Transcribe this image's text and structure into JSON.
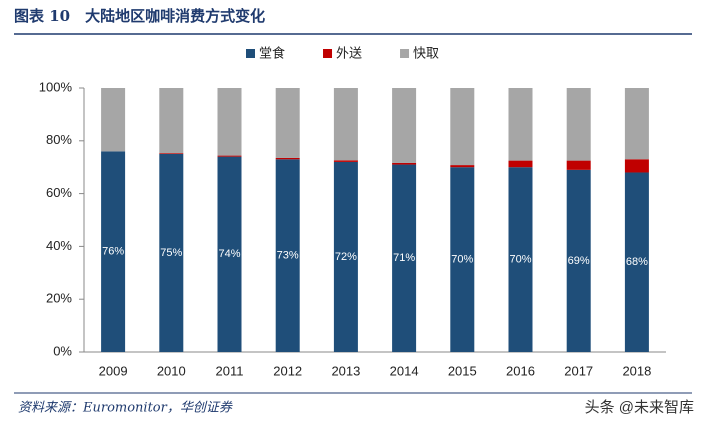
{
  "chart_data": {
    "type": "stacked_bar",
    "title": "图表 10　大陆地区咖啡消费方式变化",
    "source": "资料来源：Euromonitor，华创证券",
    "watermark": "头条 @未来智库",
    "categories": [
      "2009",
      "2010",
      "2011",
      "2012",
      "2013",
      "2014",
      "2015",
      "2016",
      "2017",
      "2018"
    ],
    "series": [
      {
        "name": "堂食",
        "color": "#1f4e79",
        "values": [
          76,
          75,
          74,
          73,
          72,
          71,
          70,
          70,
          69,
          68
        ],
        "value_labels": [
          "76%",
          "75%",
          "74%",
          "73%",
          "72%",
          "71%",
          "70%",
          "70%",
          "69%",
          "68%"
        ]
      },
      {
        "name": "外送",
        "color": "#c00000",
        "values": [
          0,
          0.3,
          0.4,
          0.5,
          0.6,
          0.6,
          0.8,
          2.5,
          3.5,
          5
        ]
      },
      {
        "name": "快取",
        "color": "#a6a6a6",
        "values": [
          24,
          24.7,
          25.6,
          26.5,
          27.4,
          28.4,
          29.2,
          27.5,
          27.5,
          27
        ]
      }
    ],
    "ylim": [
      0,
      100
    ],
    "yticks": [
      {
        "value": 0,
        "label": "0%"
      },
      {
        "value": 20,
        "label": "20%"
      },
      {
        "value": 40,
        "label": "40%"
      },
      {
        "value": 60,
        "label": "60%"
      },
      {
        "value": 80,
        "label": "80%"
      },
      {
        "value": 100,
        "label": "100%"
      }
    ]
  }
}
